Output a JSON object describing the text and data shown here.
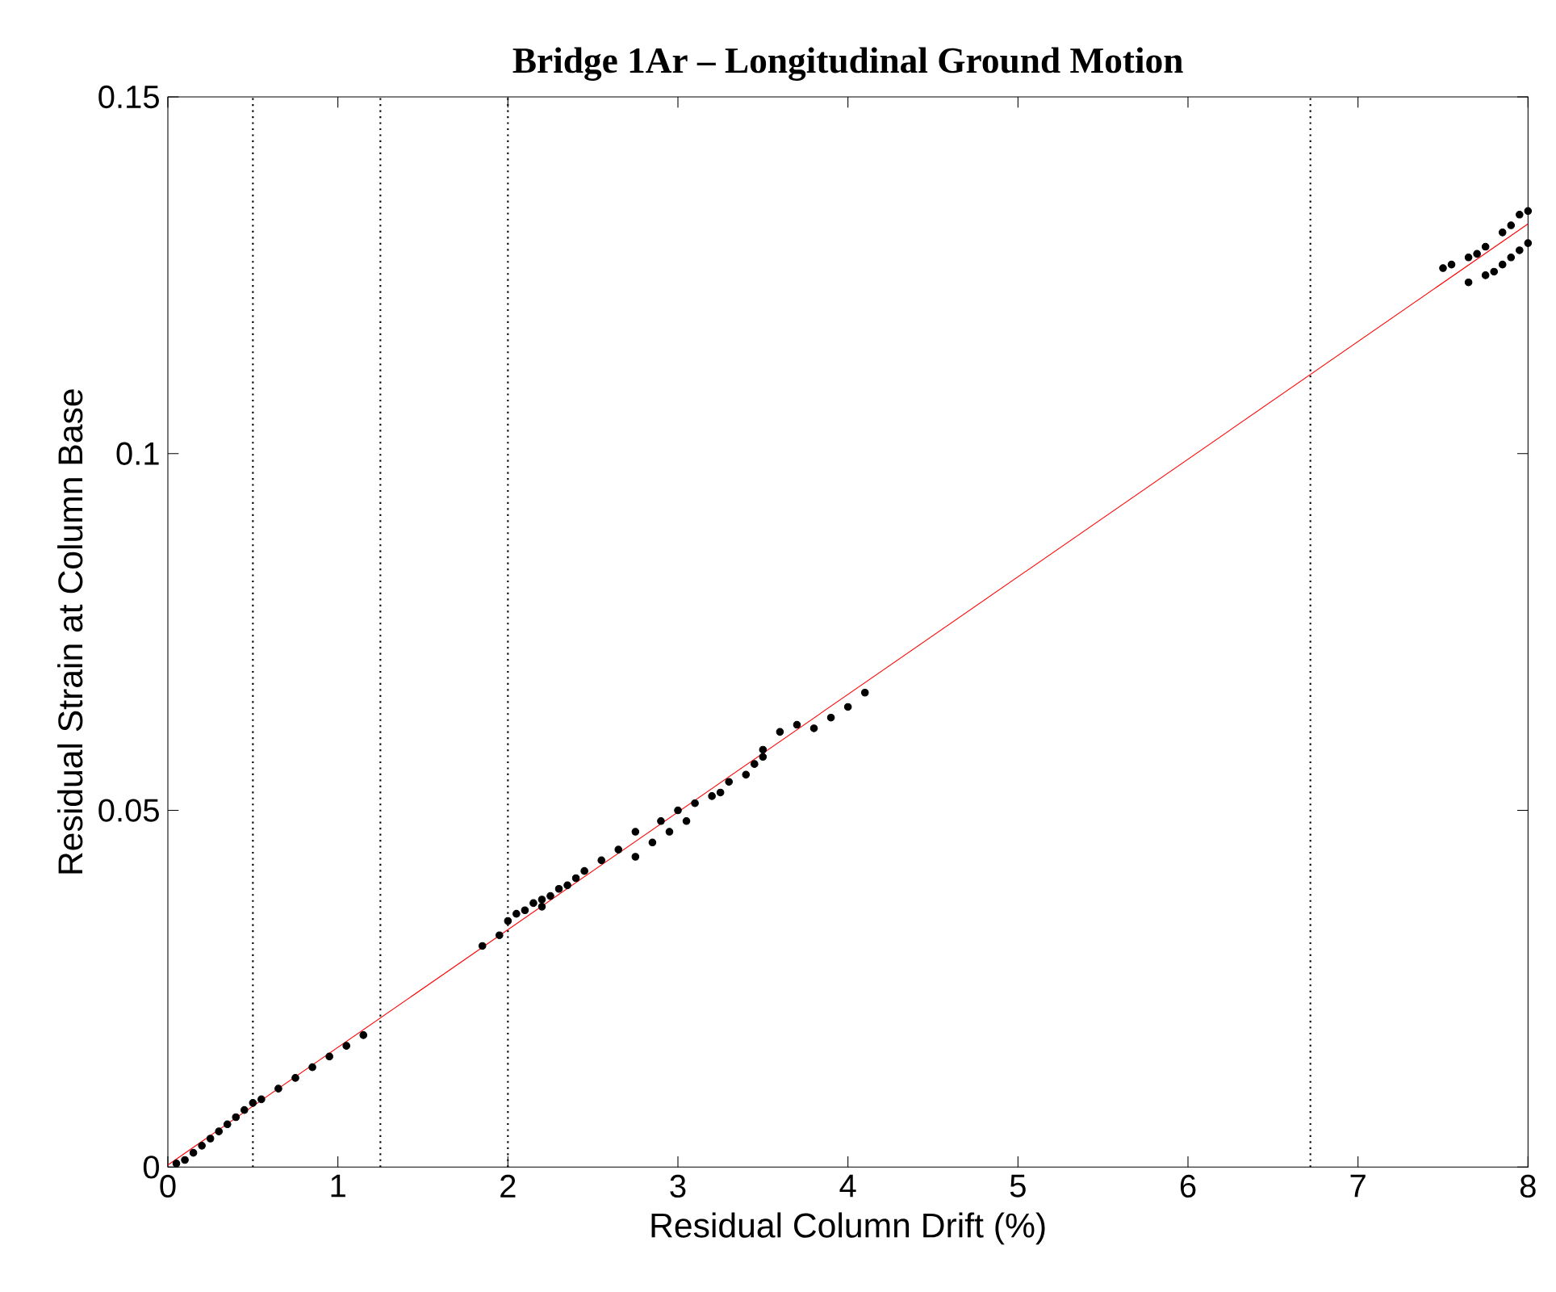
{
  "chart_data": {
    "type": "scatter",
    "title": "Bridge 1Ar – Longitudinal Ground Motion",
    "xlabel": "Residual Column Drift (%)",
    "ylabel": "Residual Strain at Column Base",
    "xlim": [
      0,
      8
    ],
    "ylim": [
      0,
      0.15
    ],
    "xticks": [
      0,
      1,
      2,
      3,
      4,
      5,
      6,
      7,
      8
    ],
    "yticks": [
      0,
      0.05,
      0.1,
      0.15
    ],
    "grid": false,
    "marker": "circle",
    "series": [
      {
        "color": "#000000",
        "x": [
          0.05,
          0.1,
          0.15,
          0.2,
          0.25,
          0.3,
          0.35,
          0.4,
          0.45,
          0.5,
          0.55,
          0.65,
          0.75,
          0.85,
          0.95,
          1.05,
          1.15,
          1.85,
          1.95,
          2.0,
          2.05,
          2.1,
          2.15,
          2.2,
          2.2,
          2.25,
          2.3,
          2.35,
          2.4,
          2.45,
          2.55,
          2.65,
          2.75,
          2.75,
          2.85,
          2.9,
          2.95,
          3.0,
          3.05,
          3.1,
          3.2,
          3.25,
          3.3,
          3.4,
          3.45,
          3.5,
          3.5,
          3.6,
          3.7,
          3.8,
          3.9,
          4.0,
          4.1,
          7.5,
          7.55,
          7.65,
          7.7,
          7.75,
          7.85,
          7.9,
          7.95,
          8.0,
          7.65,
          7.75,
          7.8,
          7.85,
          7.9,
          7.95,
          8.0
        ],
        "values": [
          0.0005,
          0.001,
          0.002,
          0.003,
          0.004,
          0.005,
          0.006,
          0.007,
          0.008,
          0.009,
          0.0095,
          0.011,
          0.0125,
          0.014,
          0.0155,
          0.017,
          0.0185,
          0.031,
          0.0325,
          0.0345,
          0.0355,
          0.036,
          0.037,
          0.0375,
          0.0365,
          0.038,
          0.039,
          0.0395,
          0.0405,
          0.0415,
          0.043,
          0.0445,
          0.0435,
          0.047,
          0.0455,
          0.0485,
          0.047,
          0.05,
          0.0485,
          0.051,
          0.052,
          0.0525,
          0.054,
          0.055,
          0.0565,
          0.0575,
          0.0585,
          0.061,
          0.062,
          0.0615,
          0.063,
          0.0645,
          0.0665,
          0.126,
          0.1265,
          0.1275,
          0.128,
          0.129,
          0.131,
          0.132,
          0.1335,
          0.134,
          0.124,
          0.125,
          0.1255,
          0.1265,
          0.1275,
          0.1285,
          0.1295
        ]
      },
      {
        "type": "line",
        "color": "#ff0000",
        "marker": "none",
        "line_style": "solid",
        "x": [
          0,
          8
        ],
        "values": [
          0.0003,
          0.1322
        ]
      }
    ],
    "ref_lines": [
      {
        "axis": "x",
        "value": 0.5,
        "color": "#000000",
        "line_style": "dotted"
      },
      {
        "axis": "x",
        "value": 1.25,
        "color": "#000000",
        "line_style": "dotted"
      },
      {
        "axis": "x",
        "value": 2.0,
        "color": "#000000",
        "line_style": "dotted"
      },
      {
        "axis": "x",
        "value": 6.72,
        "color": "#000000",
        "line_style": "dotted"
      }
    ]
  }
}
